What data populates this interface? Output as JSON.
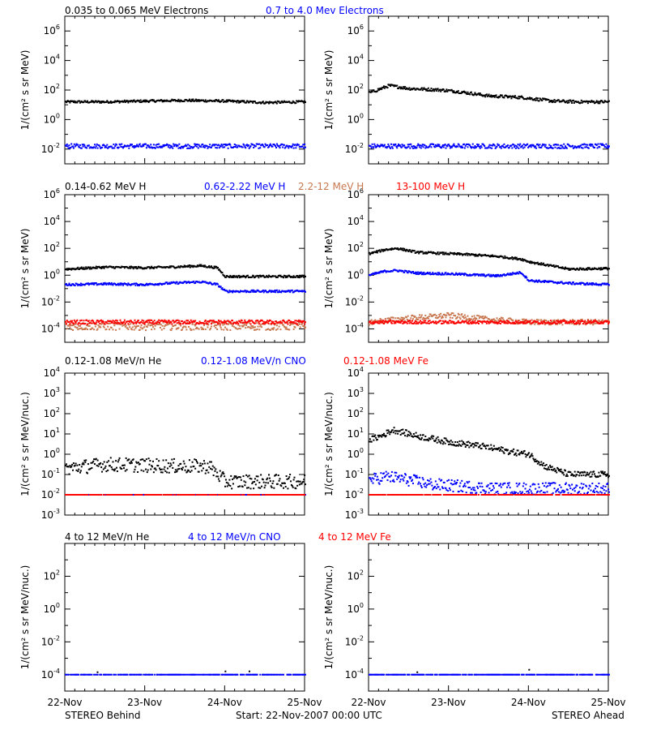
{
  "colors": {
    "black": "#000000",
    "blue": "#0000ff",
    "tan": "#c87850",
    "red": "#ff0000"
  },
  "footer": {
    "left": "STEREO Behind",
    "center": "Start: 22-Nov-2007 00:00 UTC",
    "right": "STEREO Ahead"
  },
  "row_titles": [
    [
      {
        "text": "0.035 to 0.065 MeV Electrons",
        "color": "black"
      },
      {
        "text": "0.7 to 4.0 Mev Electrons",
        "color": "blue"
      }
    ],
    [
      {
        "text": "0.14-0.62 MeV H",
        "color": "black"
      },
      {
        "text": "0.62-2.22 MeV H",
        "color": "blue"
      },
      {
        "text": "2.2-12 MeV H",
        "color": "tan"
      },
      {
        "text": "13-100 MeV H",
        "color": "red"
      }
    ],
    [
      {
        "text": "0.12-1.08 MeV/n He",
        "color": "black"
      },
      {
        "text": "0.12-1.08 MeV/n CNO",
        "color": "blue"
      },
      {
        "text": "0.12-1.08 MeV Fe",
        "color": "red"
      }
    ],
    [
      {
        "text": "4 to 12 MeV/n He",
        "color": "black"
      },
      {
        "text": "4 to 12 MeV/n CNO",
        "color": "blue"
      },
      {
        "text": "4 to 12 MeV Fe",
        "color": "red"
      }
    ]
  ],
  "chart_data": [
    {
      "type": "scatter",
      "panel": "behind-electrons",
      "row": 0,
      "col": 0,
      "ylabel": "1/(cm² s sr MeV)",
      "yscale": "log",
      "ylim_exp": [
        -3,
        7
      ],
      "ytick_exps": [
        -2,
        0,
        2,
        4,
        6
      ],
      "xlabels": [
        "22-Nov",
        "23-Nov",
        "24-Nov",
        "25-Nov"
      ],
      "series": [
        {
          "color": "black",
          "x": [
            0,
            0.5,
            1,
            1.5,
            2,
            2.5,
            3
          ],
          "y_exp": [
            1.2,
            1.2,
            1.25,
            1.3,
            1.25,
            1.15,
            1.2
          ],
          "scatter": 0.08
        },
        {
          "color": "blue",
          "x": [
            0,
            0.5,
            1,
            1.5,
            2,
            2.5,
            3
          ],
          "y_exp": [
            -1.8,
            -1.8,
            -1.8,
            -1.8,
            -1.8,
            -1.8,
            -1.8
          ],
          "scatter": 0.15
        }
      ]
    },
    {
      "type": "scatter",
      "panel": "ahead-electrons",
      "row": 0,
      "col": 1,
      "ylabel": "1/(cm² s sr MeV)",
      "yscale": "log",
      "ylim_exp": [
        -3,
        7
      ],
      "ytick_exps": [
        -2,
        0,
        2,
        4,
        6
      ],
      "xlabels": [
        "22-Nov",
        "23-Nov",
        "24-Nov",
        "25-Nov"
      ],
      "series": [
        {
          "color": "black",
          "x": [
            0,
            0.1,
            0.25,
            0.5,
            0.9,
            1.1,
            1.5,
            1.9,
            2.3,
            2.6,
            3
          ],
          "y_exp": [
            1.8,
            2.0,
            2.3,
            2.1,
            2.0,
            1.9,
            1.6,
            1.5,
            1.25,
            1.2,
            1.2
          ],
          "scatter": 0.1
        },
        {
          "color": "blue",
          "x": [
            0,
            0.5,
            1,
            1.5,
            2,
            2.5,
            3
          ],
          "y_exp": [
            -1.8,
            -1.8,
            -1.8,
            -1.8,
            -1.8,
            -1.8,
            -1.8
          ],
          "scatter": 0.15
        }
      ]
    },
    {
      "type": "scatter",
      "panel": "behind-protons",
      "row": 1,
      "col": 0,
      "ylabel": "1/(cm² s sr MeV)",
      "yscale": "log",
      "ylim_exp": [
        -5,
        6
      ],
      "ytick_exps": [
        -4,
        -2,
        0,
        2,
        4,
        6
      ],
      "xlabels": [
        "22-Nov",
        "23-Nov",
        "24-Nov",
        "25-Nov"
      ],
      "series": [
        {
          "color": "black",
          "x": [
            0,
            0.5,
            1,
            1.3,
            1.7,
            1.9,
            2.0,
            2.5,
            3
          ],
          "y_exp": [
            0.45,
            0.6,
            0.55,
            0.6,
            0.7,
            0.55,
            -0.1,
            -0.1,
            -0.1
          ],
          "scatter": 0.08
        },
        {
          "color": "blue",
          "x": [
            0,
            0.5,
            1,
            1.3,
            1.7,
            1.9,
            2.0,
            2.5,
            3
          ],
          "y_exp": [
            -0.7,
            -0.65,
            -0.7,
            -0.6,
            -0.5,
            -0.7,
            -1.2,
            -1.2,
            -1.2
          ],
          "scatter": 0.08
        },
        {
          "color": "tan",
          "x": [
            0,
            1,
            2,
            3
          ],
          "y_exp": [
            -3.8,
            -3.8,
            -3.8,
            -3.8
          ],
          "scatter": 0.3
        },
        {
          "color": "red",
          "x": [
            0,
            1,
            2,
            3
          ],
          "y_exp": [
            -3.5,
            -3.5,
            -3.5,
            -3.5
          ],
          "scatter": 0.15
        }
      ]
    },
    {
      "type": "scatter",
      "panel": "ahead-protons",
      "row": 1,
      "col": 1,
      "ylabel": "1/(cm² s sr MeV)",
      "yscale": "log",
      "ylim_exp": [
        -5,
        6
      ],
      "ytick_exps": [
        -4,
        -2,
        0,
        2,
        4,
        6
      ],
      "xlabels": [
        "22-Nov",
        "23-Nov",
        "24-Nov",
        "25-Nov"
      ],
      "series": [
        {
          "color": "black",
          "x": [
            0,
            0.2,
            0.35,
            0.6,
            1.0,
            1.2,
            1.6,
            1.9,
            2.0,
            2.5,
            3
          ],
          "y_exp": [
            1.6,
            1.9,
            2.0,
            1.7,
            1.6,
            1.55,
            1.4,
            1.2,
            1.0,
            0.45,
            0.5
          ],
          "scatter": 0.08
        },
        {
          "color": "blue",
          "x": [
            0,
            0.2,
            0.35,
            0.6,
            1.0,
            1.2,
            1.6,
            1.9,
            2.0,
            2.5,
            3
          ],
          "y_exp": [
            0.0,
            0.3,
            0.35,
            0.15,
            0.1,
            0.05,
            -0.05,
            0.2,
            -0.4,
            -0.6,
            -0.7
          ],
          "scatter": 0.08
        },
        {
          "color": "tan",
          "x": [
            0,
            0.5,
            1.0,
            1.5,
            2,
            3
          ],
          "y_exp": [
            -3.5,
            -3.2,
            -3.0,
            -3.3,
            -3.5,
            -3.5
          ],
          "scatter": 0.2
        },
        {
          "color": "red",
          "x": [
            0,
            1,
            2,
            3
          ],
          "y_exp": [
            -3.5,
            -3.5,
            -3.5,
            -3.5
          ],
          "scatter": 0.12
        }
      ]
    },
    {
      "type": "scatter",
      "panel": "behind-heavy-low",
      "row": 2,
      "col": 0,
      "ylabel": "1/(cm² s sr MeV/nuc.)",
      "yscale": "log",
      "ylim_exp": [
        -3,
        4
      ],
      "ytick_exps": [
        -3,
        -2,
        -1,
        0,
        1,
        2,
        3,
        4
      ],
      "xlabels": [
        "22-Nov",
        "23-Nov",
        "24-Nov",
        "25-Nov"
      ],
      "series": [
        {
          "color": "black",
          "x": [
            0,
            0.5,
            1,
            1.5,
            1.8,
            2.0,
            2.5,
            3
          ],
          "y_exp": [
            -0.7,
            -0.5,
            -0.55,
            -0.6,
            -0.6,
            -1.35,
            -1.35,
            -1.35
          ],
          "scatter": 0.35
        },
        {
          "color": "blue",
          "x": [
            0,
            1,
            2,
            3
          ],
          "y_exp": [
            -2.0,
            -2.0,
            -2.0,
            -2.0
          ],
          "scatter": 0.0
        },
        {
          "color": "red",
          "x": [
            0,
            1,
            2,
            3
          ],
          "y_exp": [
            -2.0,
            -2.0,
            -2.0,
            -2.0
          ],
          "scatter": 0.0
        }
      ]
    },
    {
      "type": "scatter",
      "panel": "ahead-heavy-low",
      "row": 2,
      "col": 1,
      "ylabel": "1/(cm² s sr MeV/nuc.)",
      "yscale": "log",
      "ylim_exp": [
        -3,
        4
      ],
      "ytick_exps": [
        -3,
        -2,
        -1,
        0,
        1,
        2,
        3,
        4
      ],
      "xlabels": [
        "22-Nov",
        "23-Nov",
        "24-Nov",
        "25-Nov"
      ],
      "series": [
        {
          "color": "black",
          "x": [
            0,
            0.15,
            0.3,
            0.6,
            1.0,
            1.4,
            1.8,
            2.0,
            2.2,
            2.5,
            3
          ],
          "y_exp": [
            0.7,
            0.9,
            1.2,
            0.9,
            0.6,
            0.4,
            0.1,
            0.0,
            -0.6,
            -1.0,
            -1.0
          ],
          "scatter": 0.15
        },
        {
          "color": "blue",
          "x": [
            0,
            0.2,
            0.4,
            0.8,
            1.2,
            1.6,
            2.0,
            3
          ],
          "y_exp": [
            -1.3,
            -1.1,
            -1.2,
            -1.5,
            -1.6,
            -1.7,
            -1.7,
            -1.7
          ],
          "scatter": 0.3
        },
        {
          "color": "red",
          "x": [
            0,
            1,
            2,
            3
          ],
          "y_exp": [
            -2.0,
            -2.0,
            -2.0,
            -2.0
          ],
          "scatter": 0.0
        }
      ]
    },
    {
      "type": "scatter",
      "panel": "behind-heavy-high",
      "row": 3,
      "col": 0,
      "ylabel": "1/(cm² s sr MeV/nuc.)",
      "yscale": "log",
      "ylim_exp": [
        -5,
        4
      ],
      "ytick_exps": [
        -4,
        -2,
        0,
        2
      ],
      "xlabels": [
        "22-Nov",
        "23-Nov",
        "24-Nov",
        "25-Nov"
      ],
      "series": [
        {
          "color": "blue",
          "x": [
            0,
            1,
            2,
            3
          ],
          "y_exp": [
            -4.0,
            -4.0,
            -4.0,
            -4.0
          ],
          "scatter": 0.0
        },
        {
          "color": "black",
          "x": [
            0.4,
            2.0,
            2.3
          ],
          "y_exp": [
            -3.85,
            -3.8,
            -3.8
          ],
          "scatter": 0.0
        }
      ]
    },
    {
      "type": "scatter",
      "panel": "ahead-heavy-high",
      "row": 3,
      "col": 1,
      "ylabel": "1/(cm² s sr MeV/nuc.)",
      "yscale": "log",
      "ylim_exp": [
        -5,
        4
      ],
      "ytick_exps": [
        -4,
        -2,
        0,
        2
      ],
      "xlabels": [
        "22-Nov",
        "23-Nov",
        "24-Nov",
        "25-Nov"
      ],
      "series": [
        {
          "color": "blue",
          "x": [
            0,
            1,
            2,
            3
          ],
          "y_exp": [
            -4.0,
            -4.0,
            -4.0,
            -4.0
          ],
          "scatter": 0.0
        },
        {
          "color": "black",
          "x": [
            0.6,
            2.0
          ],
          "y_exp": [
            -3.85,
            -3.7
          ],
          "scatter": 0.0
        }
      ]
    }
  ]
}
